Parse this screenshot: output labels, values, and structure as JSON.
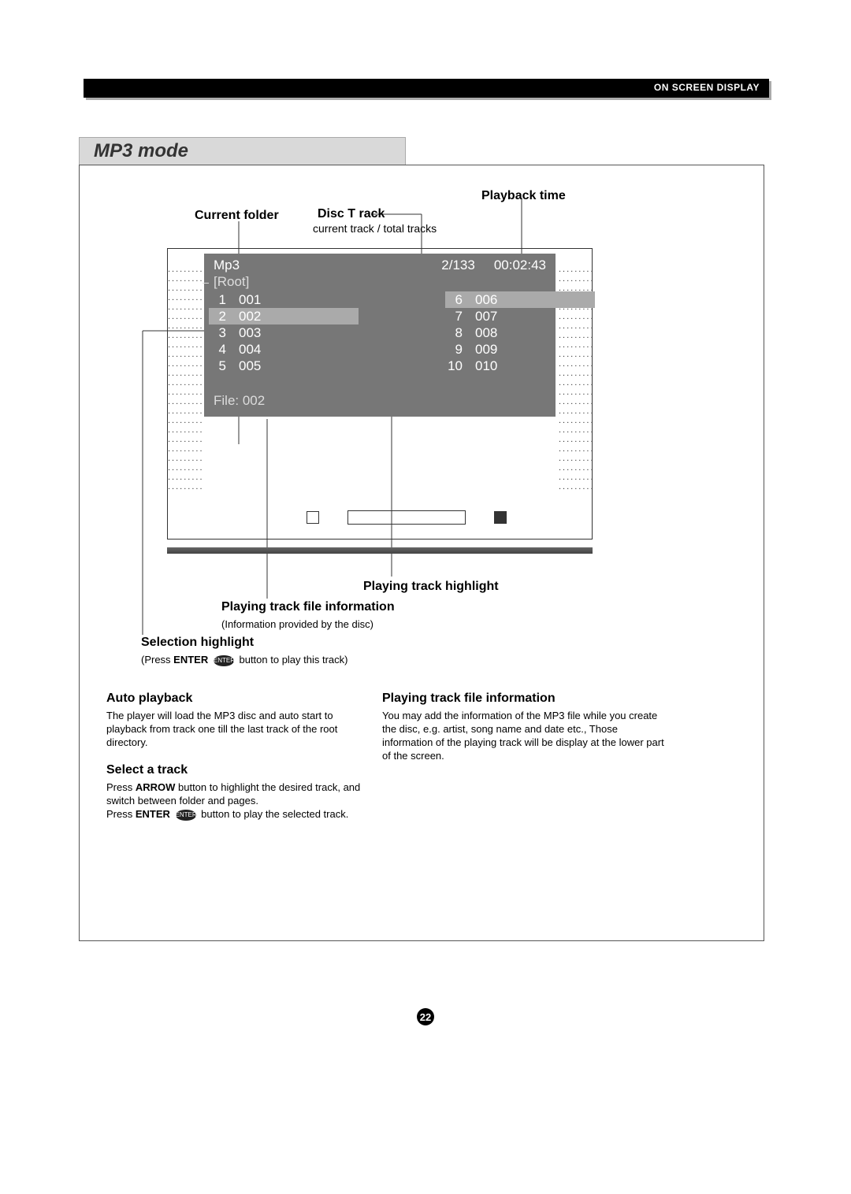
{
  "header": {
    "osd_label": "ON SCREEN DISPLAY"
  },
  "title": "MP3 mode",
  "callouts": {
    "playback_time": "Playback  time",
    "current_folder": "Current folder",
    "disc_track": "Disc T rack",
    "disc_track_sub": "current track / total tracks",
    "playing_track_highlight": "Playing track   highlight",
    "playing_track_file_info": "Playing track   file information",
    "playing_track_file_info_sub": "(Information provided by     the disc)",
    "selection_highlight": "Selection highlight",
    "selection_highlight_sub_pre": "(Press ",
    "selection_highlight_sub_enter": "ENTER",
    "selection_highlight_sub_post": " button to play  this track)"
  },
  "osd": {
    "mode": "Mp3",
    "track_ratio": "2/133",
    "time": "00:02:43",
    "folder": "[Root]",
    "left_tracks": [
      {
        "n": "1",
        "t": "001"
      },
      {
        "n": "2",
        "t": "002"
      },
      {
        "n": "3",
        "t": "003"
      },
      {
        "n": "4",
        "t": "004"
      },
      {
        "n": "5",
        "t": "005"
      }
    ],
    "right_tracks": [
      {
        "n": "6",
        "t": "006"
      },
      {
        "n": "7",
        "t": "007"
      },
      {
        "n": "8",
        "t": "008"
      },
      {
        "n": "9",
        "t": "009"
      },
      {
        "n": "10",
        "t": "010"
      }
    ],
    "highlight_index": 1,
    "file_label": "File: 002",
    "colors": {
      "panel_bg": "#777777",
      "highlight_bg": "#aaaaaa",
      "text": "#ffffff",
      "muted": "#dddddd"
    }
  },
  "sections": {
    "auto_playback": {
      "h": "Auto playback",
      "p": "The player will  load the MP3  disc and auto  start to playback from track   one till the  last track of  the root directory."
    },
    "select_track": {
      "h": "Select a  track",
      "p1_pre": "Press ",
      "p1_arrow": "ARROW",
      "p1_post": " button to highlight   the desired track,   and switch between folder    and pages.",
      "p2_pre": "Press ",
      "p2_enter": "ENTER",
      "p2_post": " button to play  the selected track."
    },
    "file_info": {
      "h": "Playing track   file information",
      "p": "You  may add the  information of the   MP3 file while you create   the disc, e.g.  artist, song name and date etc.,   Those information of   the playing track will be  display at the  lower part of  the screen."
    }
  },
  "enter_oval": "ENTER",
  "page_number": "22",
  "dotrow": "........."
}
